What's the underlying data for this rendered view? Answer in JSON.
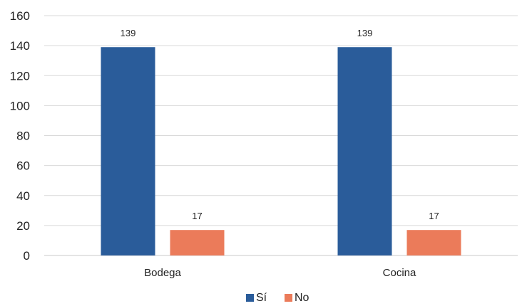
{
  "chart_data": {
    "type": "bar",
    "categories": [
      "Bodega",
      "Cocina"
    ],
    "series": [
      {
        "name": "Sí",
        "values": [
          139,
          139
        ],
        "color": "#2A5C9A"
      },
      {
        "name": "No",
        "values": [
          17,
          17
        ],
        "color": "#EB7B5A"
      }
    ],
    "ylim": [
      0,
      160
    ],
    "yticks": [
      0,
      20,
      40,
      60,
      80,
      100,
      120,
      140,
      160
    ],
    "grid": true,
    "legend": "bottom",
    "data_labels": true
  }
}
